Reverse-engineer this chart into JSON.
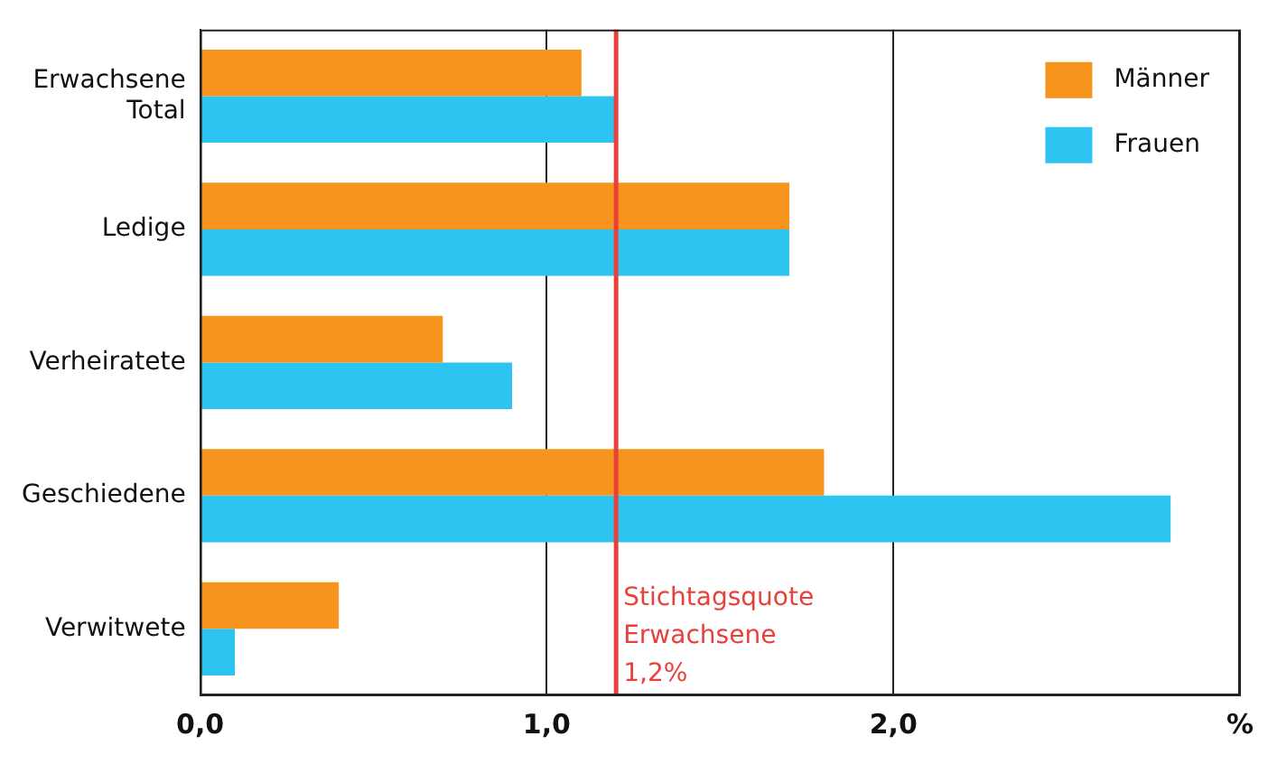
{
  "chart_data": {
    "type": "bar",
    "orientation": "horizontal",
    "categories": [
      "Erwachsene Total",
      "Ledige",
      "Verheiratete",
      "Geschiedene",
      "Verwitwete"
    ],
    "series": [
      {
        "name": "Männer",
        "color": "#f7941d",
        "values": [
          1.1,
          1.7,
          0.7,
          1.8,
          0.4
        ]
      },
      {
        "name": "Frauen",
        "color": "#2ec4f1",
        "values": [
          1.2,
          1.7,
          0.9,
          2.8,
          0.1
        ]
      }
    ],
    "xlim": [
      0,
      3
    ],
    "xticks": [
      {
        "value": 0,
        "label": "0,0"
      },
      {
        "value": 1,
        "label": "1,0"
      },
      {
        "value": 2,
        "label": "2,0"
      },
      {
        "value": 3,
        "label": "%"
      }
    ],
    "ref_lines": [
      {
        "axis": "x",
        "value": 1.2,
        "label": "Stichtagsquote Erwachsene 1,2%",
        "color": "#e8413c"
      }
    ],
    "grid": "x",
    "legend": "top right"
  }
}
